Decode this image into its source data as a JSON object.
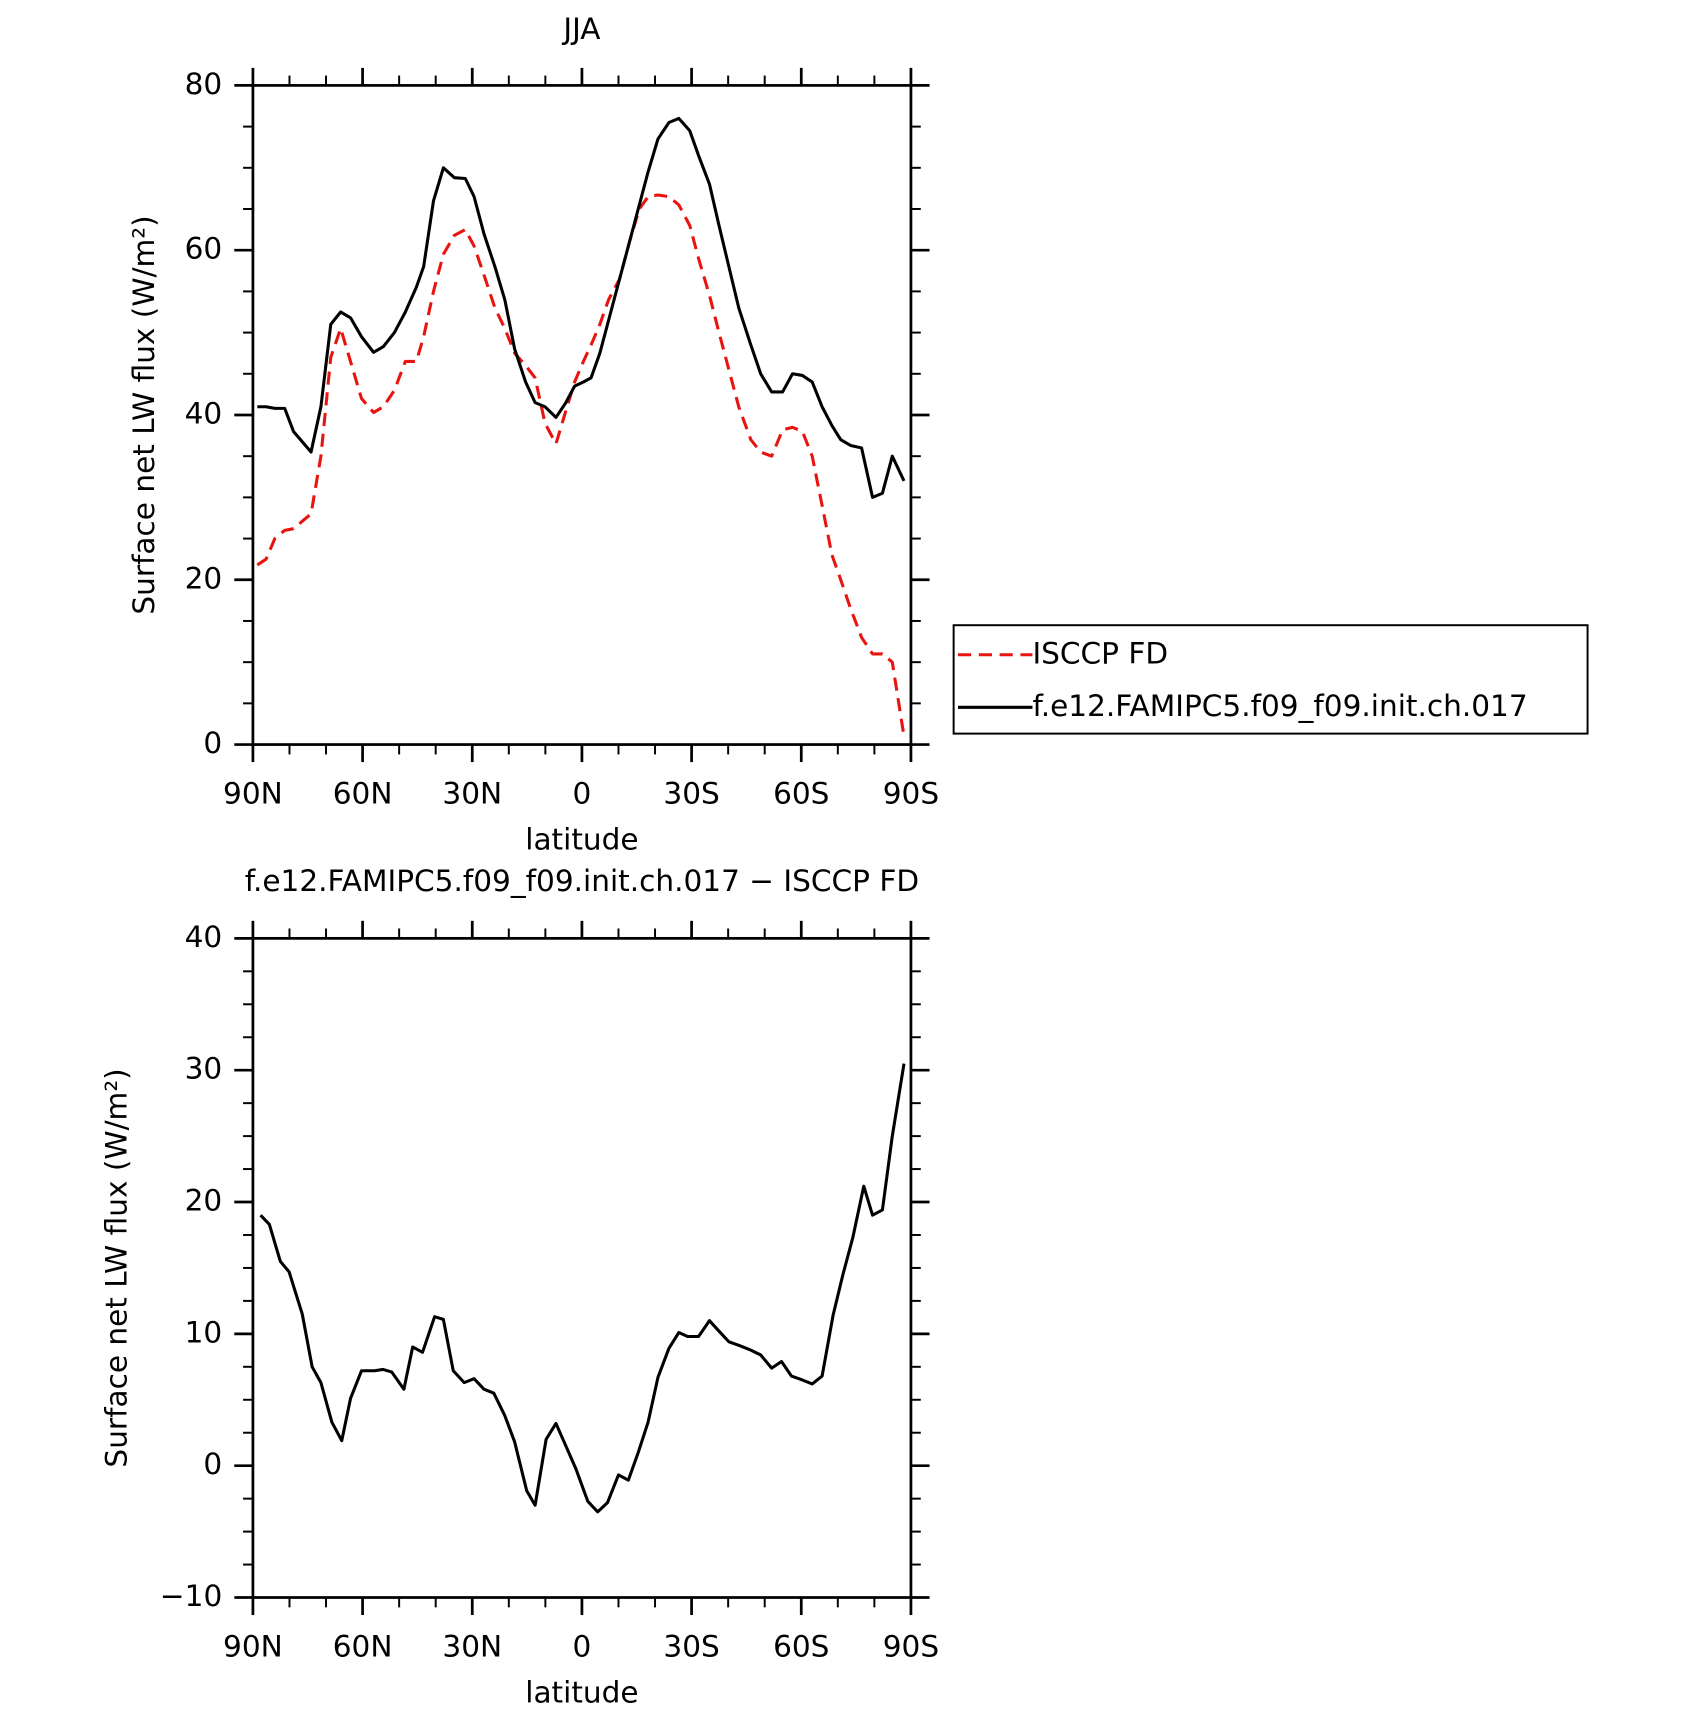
{
  "chart_data": [
    {
      "type": "line",
      "title": "JJA",
      "xlabel": "latitude",
      "ylabel": "Surface net LW flux (W/m²)",
      "xlim": [
        90,
        -90
      ],
      "ylim": [
        0,
        80
      ],
      "xticks": [
        {
          "value": 90,
          "label": "90N"
        },
        {
          "value": 60,
          "label": "60N"
        },
        {
          "value": 30,
          "label": "30N"
        },
        0,
        {
          "value": -30,
          "label": "30S"
        },
        {
          "value": -60,
          "label": "60S"
        },
        {
          "value": -90,
          "label": "90S"
        }
      ],
      "yticks": [
        0,
        20,
        40,
        60,
        80
      ],
      "legend": "right",
      "x": [
        88.8,
        86.4,
        84.0,
        81.3,
        78.9,
        74.1,
        71.4,
        68.7,
        66.0,
        63.3,
        60.3,
        57.0,
        54.3,
        51.3,
        48.3,
        45.3,
        43.3,
        40.6,
        37.9,
        34.9,
        31.9,
        29.5,
        26.8,
        23.8,
        21.1,
        18.4,
        15.4,
        12.8,
        10.1,
        7.1,
        4.4,
        2.0,
        -0.4,
        -2.5,
        -4.9,
        -7.3,
        -10.3,
        -13.0,
        -15.7,
        -18.1,
        -20.8,
        -23.8,
        -26.5,
        -29.5,
        -31.9,
        -34.9,
        -37.5,
        -40.2,
        -42.9,
        -46.2,
        -48.9,
        -51.9,
        -54.9,
        -57.6,
        -60.3,
        -63.0,
        -65.7,
        -68.4,
        -70.8,
        -73.5,
        -76.5,
        -79.5,
        -82.2,
        -84.9,
        -88.1
      ],
      "series": [
        {
          "name": "ISCCP FD",
          "color": "#e8140f",
          "dash": true,
          "values": [
            21.8,
            22.5,
            25,
            26,
            26.2,
            28,
            35,
            47,
            50.5,
            46.5,
            42,
            40.3,
            41,
            43,
            46.5,
            46.5,
            49.5,
            55,
            59.5,
            61.8,
            62.5,
            60.5,
            57,
            53,
            50.5,
            47.5,
            46,
            44.5,
            39,
            36.5,
            40.5,
            44,
            46.5,
            48.5,
            51,
            54,
            56.5,
            61,
            65,
            66.5,
            66.7,
            66.5,
            65.5,
            63,
            59,
            54.5,
            50,
            45.5,
            41,
            37,
            35.5,
            35,
            38.2,
            38.5,
            38,
            35,
            29,
            23,
            20,
            16.5,
            13,
            11,
            11,
            10,
            1
          ]
        },
        {
          "name": "f.e12.FAMIPC5.f09_f09.init.ch.017",
          "color": "#000000",
          "dash": false,
          "values": [
            41,
            41,
            40.8,
            40.8,
            38,
            35.5,
            41,
            51,
            52.5,
            51.8,
            49.5,
            47.6,
            48.3,
            50,
            52.5,
            55.5,
            58,
            66,
            70,
            68.8,
            68.7,
            66.5,
            62,
            58,
            54,
            48,
            44,
            41.5,
            41,
            39.7,
            41.5,
            43.5,
            44,
            44.5,
            47.5,
            51.5,
            56.5,
            61,
            65.5,
            69.5,
            73.5,
            75.5,
            76,
            74.5,
            71.5,
            68,
            63,
            58,
            53,
            48.5,
            45,
            42.8,
            42.8,
            45,
            44.8,
            44,
            41,
            38.7,
            37,
            36.3,
            36,
            30,
            30.5,
            35,
            32
          ]
        }
      ]
    },
    {
      "type": "line",
      "title": "f.e12.FAMIPC5.f09_f09.init.ch.017 − ISCCP FD",
      "xlabel": "latitude",
      "ylabel": "Surface net LW flux (W/m²)",
      "xlim": [
        90,
        -90
      ],
      "ylim": [
        -10,
        40
      ],
      "xticks": [
        {
          "value": 90,
          "label": "90N"
        },
        {
          "value": 60,
          "label": "60N"
        },
        {
          "value": 30,
          "label": "30N"
        },
        0,
        {
          "value": -30,
          "label": "30S"
        },
        {
          "value": -60,
          "label": "60S"
        },
        {
          "value": -90,
          "label": "90S"
        }
      ],
      "yticks": [
        {
          "value": -10,
          "label": "−10"
        },
        0,
        10,
        20,
        30,
        40
      ],
      "x": [
        87.9,
        85.5,
        82.5,
        80.1,
        76.5,
        73.8,
        71.4,
        68.4,
        65.7,
        63.3,
        60.3,
        56.7,
        54.4,
        52.0,
        48.7,
        46.3,
        43.6,
        40.3,
        37.9,
        35.2,
        32.2,
        29.5,
        26.8,
        24.1,
        21.1,
        18.4,
        15.1,
        12.8,
        9.8,
        7.1,
        4.4,
        1.7,
        -1.6,
        -4.3,
        -7.0,
        -10.0,
        -12.7,
        -15.4,
        -18.1,
        -20.8,
        -23.8,
        -26.5,
        -28.9,
        -31.9,
        -34.9,
        -37.5,
        -40.2,
        -43.2,
        -45.9,
        -48.9,
        -51.9,
        -54.6,
        -57.3,
        -60.3,
        -63.0,
        -65.7,
        -68.7,
        -71.4,
        -74.1,
        -77.1,
        -79.5,
        -82.2,
        -84.9,
        -88.1
      ],
      "series": [
        {
          "color": "#000000",
          "dash": false,
          "values": [
            19,
            18.3,
            15.5,
            14.7,
            11.5,
            7.5,
            6.3,
            3.3,
            1.9,
            5.1,
            7.2,
            7.2,
            7.3,
            7.1,
            5.8,
            9,
            8.6,
            11.3,
            11.1,
            7.2,
            6.3,
            6.6,
            5.8,
            5.5,
            3.8,
            1.8,
            -1.9,
            -3,
            2,
            3.2,
            1.5,
            -0.2,
            -2.7,
            -3.5,
            -2.8,
            -0.7,
            -1.1,
            1,
            3.3,
            6.7,
            8.9,
            10.1,
            9.8,
            9.8,
            11,
            10.2,
            9.4,
            9.1,
            8.8,
            8.4,
            7.4,
            7.9,
            6.8,
            6.5,
            6.2,
            6.8,
            11.4,
            14.5,
            17.3,
            21.2,
            19,
            19.4,
            25,
            30.5
          ]
        }
      ]
    }
  ]
}
